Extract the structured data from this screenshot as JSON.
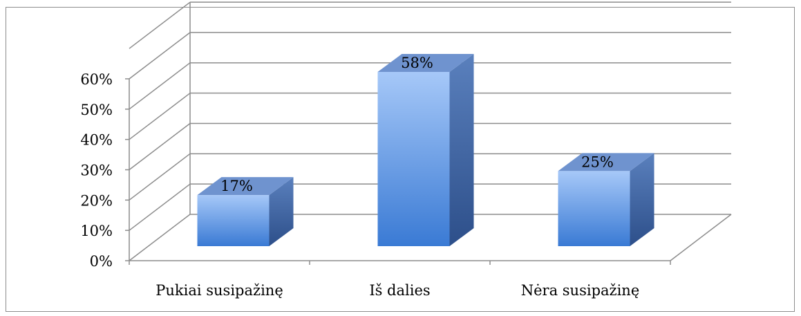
{
  "chart_data": {
    "type": "bar",
    "style": "3d-column",
    "categories": [
      "Pukiai susipažinę",
      "Iš dalies",
      "Nėra susipažinę"
    ],
    "values": [
      17,
      58,
      25
    ],
    "data_labels": [
      "17%",
      "58%",
      "25%"
    ],
    "y_ticks": [
      0,
      10,
      20,
      30,
      40,
      50,
      60
    ],
    "y_tick_labels": [
      "0%",
      "10%",
      "20%",
      "30%",
      "40%",
      "50%",
      "60%"
    ],
    "ylim": [
      0,
      60
    ],
    "grid": true,
    "legend": "none",
    "colors": {
      "bar_front_top": "#9fc3f7",
      "bar_front_bottom": "#3f7fd8",
      "bar_side": "#3c65a6",
      "bar_top": "#6f93cf",
      "grid": "#8c8c8c"
    }
  }
}
